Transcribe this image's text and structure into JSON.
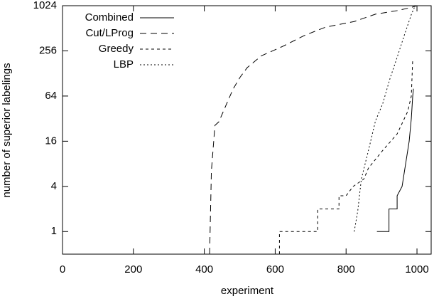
{
  "chart_data": {
    "type": "line",
    "x_label": "experiment",
    "y_label": "number of superior labelings",
    "xlim": [
      0,
      1040
    ],
    "xticks": [
      0,
      200,
      400,
      600,
      800,
      1000
    ],
    "ylim": [
      0.5,
      1024
    ],
    "yticks": [
      1,
      4,
      16,
      64,
      256,
      1024
    ],
    "y_log_base": 2,
    "legend": "top-left",
    "series": [
      {
        "name": "Combined",
        "color": "#000000",
        "dash": "none",
        "x": [
          887,
          921,
          921,
          944,
          944,
          958,
          968,
          978,
          984,
          988,
          990
        ],
        "values": [
          1,
          1,
          2,
          2,
          3,
          4,
          8,
          16,
          32,
          64,
          80
        ]
      },
      {
        "name": "Cut/LProg",
        "color": "#000000",
        "dash": "9,6",
        "x": [
          415,
          420,
          430,
          441,
          461,
          481,
          501,
          521,
          561,
          622,
          682,
          742,
          823,
          883,
          944,
          984,
          1000
        ],
        "values": [
          0.5,
          6.4,
          26,
          29,
          48,
          79,
          114,
          153,
          220,
          295,
          410,
          530,
          630,
          790,
          880,
          970,
          1024
        ]
      },
      {
        "name": "Greedy",
        "color": "#000000",
        "dash": "4,4",
        "x": [
          612,
          612,
          720,
          720,
          780,
          780,
          800,
          820,
          850,
          863,
          903,
          944,
          974,
          984,
          988
        ],
        "values": [
          0.5,
          1,
          1,
          2,
          2,
          3,
          3,
          4,
          5,
          7,
          12,
          20,
          40,
          64,
          200
        ]
      },
      {
        "name": "LBP",
        "color": "#000000",
        "dash": "2,3",
        "x": [
          823,
          833,
          843,
          863,
          883,
          903,
          924,
          944,
          964,
          984,
          994
        ],
        "values": [
          1,
          1.9,
          5,
          12,
          30,
          50,
          110,
          210,
          410,
          780,
          1000
        ]
      }
    ]
  }
}
